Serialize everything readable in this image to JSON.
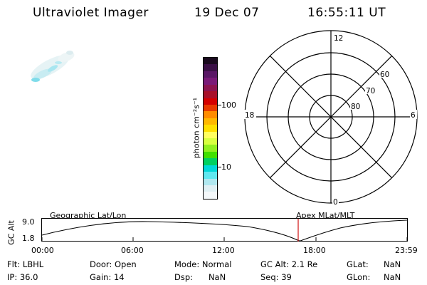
{
  "header": {
    "instrument": "Ultraviolet Imager",
    "date": "19 Dec 07",
    "time": "16:55:11 UT"
  },
  "colorbar": {
    "unit_label": "photon cm⁻²s⁻¹",
    "tick_labels": [
      "100",
      "10"
    ],
    "colors": [
      "#1a0a1e",
      "#3b1046",
      "#5a1766",
      "#7a1a78",
      "#8c1450",
      "#a8102a",
      "#d40000",
      "#e83a00",
      "#ff8c00",
      "#ffb800",
      "#ffe000",
      "#ffff60",
      "#d8ff40",
      "#90f020",
      "#40e000",
      "#00d060",
      "#00d8d8",
      "#60e8f0",
      "#b0e8f0",
      "#e0f0f4",
      "#f4f8fa"
    ]
  },
  "polar_plot": {
    "mlt_labels": {
      "top": "12",
      "bottom": "0",
      "left": "18",
      "right": "6"
    },
    "lat_labels": [
      "60",
      "70",
      "80"
    ]
  },
  "timeline": {
    "ylabel": "GC Alt",
    "yticks": [
      "9.0",
      "1.8"
    ],
    "left_title": "Geographic Lat/Lon",
    "right_title": "Apex MLat/MLT",
    "xticks": [
      "00:00",
      "06:00",
      "12:00",
      "18:00",
      "23:59"
    ],
    "marker_color": "#d01010"
  },
  "info": {
    "flt": "Flt: LBHL",
    "ip": "IP: 36.0",
    "door": "Door: Open",
    "gain": "Gain: 14",
    "mode": "Mode: Normal",
    "dsp": "Dsp:      NaN",
    "gc_alt": "GC Alt: 2.1 Re",
    "seq": "Seq: 39",
    "glat_label": "GLat:",
    "glat_val": "NaN",
    "glon_label": "GLon:",
    "glon_val": "NaN"
  }
}
